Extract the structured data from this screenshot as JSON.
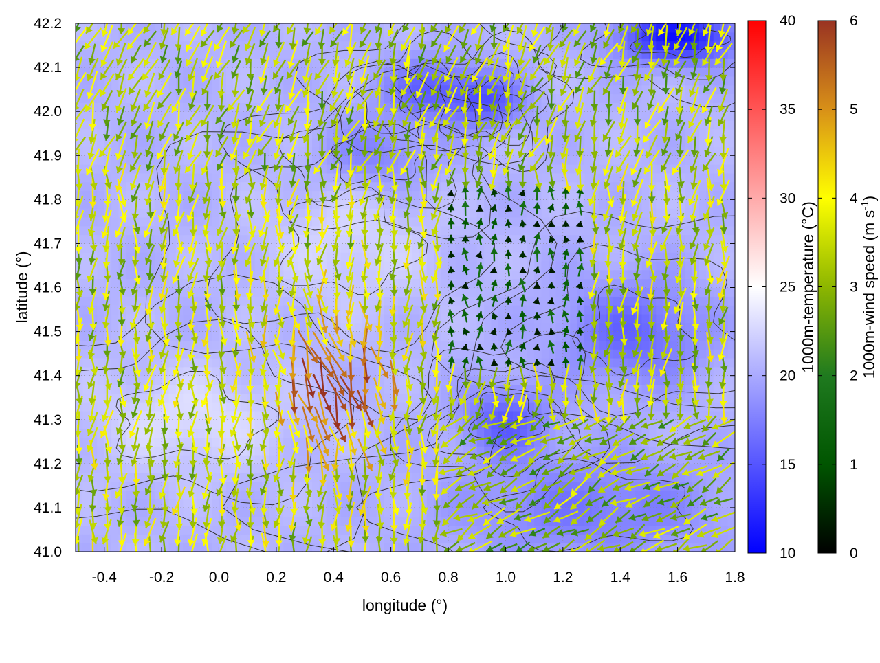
{
  "chart_data": {
    "type": "heatmap",
    "subtype": "temperature field with wind vectors and contours",
    "title": "",
    "xlabel": "longitude (°)",
    "ylabel": "latitude (°)",
    "xlim": [
      -0.5,
      1.8
    ],
    "ylim": [
      41.0,
      42.2
    ],
    "x_ticks": [
      "-0.4",
      "-0.2",
      "0.0",
      "0.2",
      "0.4",
      "0.6",
      "0.8",
      "1.0",
      "1.2",
      "1.4",
      "1.6",
      "1.8"
    ],
    "y_ticks": [
      "41.0",
      "41.1",
      "41.2",
      "41.3",
      "41.4",
      "41.5",
      "41.6",
      "41.7",
      "41.8",
      "41.9",
      "42.0",
      "42.1",
      "42.2"
    ],
    "grid": true,
    "temperature_colorbar": {
      "label": "1000m-temperature (°C)",
      "range": [
        10,
        40
      ],
      "ticks": [
        "10",
        "15",
        "20",
        "25",
        "30",
        "35",
        "40"
      ],
      "colors": {
        "low": "#0000ff",
        "mid": "#ffffff",
        "high": "#ff0000"
      },
      "mid_value": 25
    },
    "wind_colorbar": {
      "label_main": "1000m-wind speed (m s",
      "label_sup": "-1",
      "label_end": ")",
      "range": [
        0,
        6
      ],
      "ticks": [
        "0",
        "1",
        "2",
        "3",
        "4",
        "5",
        "6"
      ],
      "colors": [
        "#000000",
        "#005500",
        "#1f7a1f",
        "#8db600",
        "#ffff00",
        "#d89018",
        "#993322"
      ]
    },
    "temperature_field": {
      "background_c": 20.5,
      "features": [
        {
          "lon": 0.75,
          "lat": 42.05,
          "temp_c": 15.5,
          "radius_lon": 0.18,
          "radius_lat": 0.07
        },
        {
          "lon": 0.95,
          "lat": 42.02,
          "temp_c": 16,
          "radius_lon": 0.12,
          "radius_lat": 0.06
        },
        {
          "lon": 1.6,
          "lat": 42.17,
          "temp_c": 11,
          "radius_lon": 0.2,
          "radius_lat": 0.06
        },
        {
          "lon": 1.0,
          "lat": 41.3,
          "temp_c": 15.5,
          "radius_lon": 0.15,
          "radius_lat": 0.08
        },
        {
          "lon": 1.45,
          "lat": 41.5,
          "temp_c": 16,
          "radius_lon": 0.25,
          "radius_lat": 0.12
        },
        {
          "lon": 1.3,
          "lat": 41.1,
          "temp_c": 17,
          "radius_lon": 0.45,
          "radius_lat": 0.12
        },
        {
          "lon": 0.55,
          "lat": 41.9,
          "temp_c": 17.5,
          "radius_lon": 0.2,
          "radius_lat": 0.08
        },
        {
          "lon": -0.1,
          "lat": 41.3,
          "temp_c": 23,
          "radius_lon": 0.35,
          "radius_lat": 0.12
        },
        {
          "lon": 0.45,
          "lat": 41.7,
          "temp_c": 22.5,
          "radius_lon": 0.3,
          "radius_lat": 0.15
        }
      ]
    },
    "wind_field": {
      "grid_lon": [
        -0.5,
        1.8,
        0.05
      ],
      "grid_lat": [
        41.0,
        42.2,
        0.035
      ],
      "regimes": [
        {
          "region": "west (lon < 0.3)",
          "direction_deg": 265,
          "speed_ms": 3.5
        },
        {
          "region": "jet near lon 0.2-0.6, lat 41.2-41.6",
          "direction_deg": 295,
          "speed_ms": 5.8
        },
        {
          "region": "southeast (lon > 0.8, lat < 41.3)",
          "direction_deg": 210,
          "speed_ms": 3.0
        },
        {
          "region": "central calm (lon 0.8-1.3, lat 41.4-41.8)",
          "direction_deg": 90,
          "speed_ms": 0.8
        },
        {
          "region": "north (lat > 41.9)",
          "direction_deg": 250,
          "speed_ms": 3.2
        }
      ]
    },
    "contour_color": "#333333"
  }
}
